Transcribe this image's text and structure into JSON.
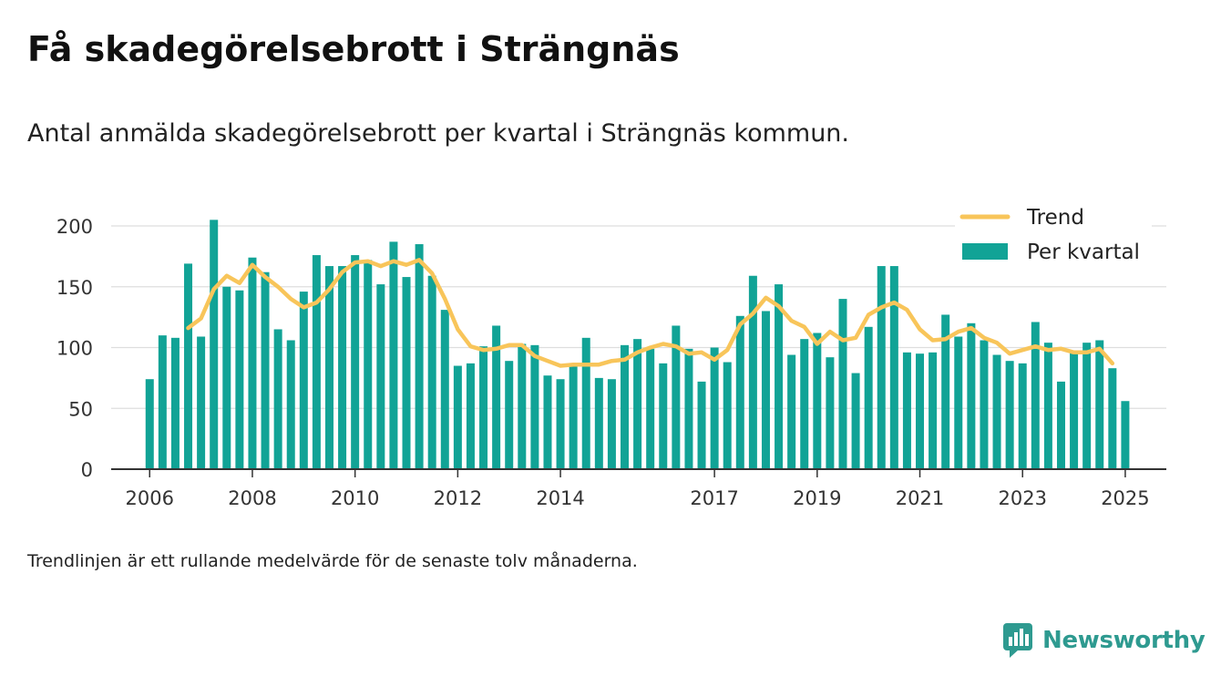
{
  "title": "Få skadegörelsebrott i Strängnäs",
  "subtitle": "Antal anmälda skadegörelsebrott per kvartal i Strängnäs kommun.",
  "footnote": "Trendlinjen är ett rullande medelvärde för de senaste tolv månaderna.",
  "brand": {
    "name": "Newsworthy",
    "icon": "newsworthy-logo-icon",
    "color": "#2e9a90"
  },
  "colors": {
    "bar": "#11a396",
    "trend": "#f8c55a",
    "grid": "#dedede",
    "axis": "#333333"
  },
  "chart_data": {
    "type": "bar",
    "title": "Få skadegörelsebrott i Strängnäs",
    "xlabel": "",
    "ylabel": "",
    "ylim": [
      0,
      200
    ],
    "yticks": [
      0,
      50,
      100,
      150,
      200
    ],
    "xlim": [
      2005.25,
      2025.8
    ],
    "xticks": [
      2006,
      2008,
      2010,
      2012,
      2014,
      2017,
      2019,
      2021,
      2023,
      2025
    ],
    "grid": true,
    "legend": "top-right",
    "x_start": 2006,
    "x_step": 0.25,
    "series": [
      {
        "name": "Per kvartal",
        "kind": "bar",
        "values": [
          74,
          110,
          108,
          169,
          109,
          205,
          150,
          147,
          174,
          162,
          115,
          106,
          146,
          176,
          167,
          167,
          176,
          172,
          152,
          187,
          158,
          185,
          159,
          131,
          85,
          87,
          101,
          118,
          89,
          103,
          102,
          77,
          74,
          86,
          108,
          75,
          74,
          102,
          107,
          99,
          87,
          118,
          99,
          72,
          100,
          88,
          126,
          159,
          130,
          152,
          94,
          107,
          112,
          92,
          140,
          79,
          117,
          167,
          167,
          96,
          95,
          96,
          127,
          109,
          120,
          106,
          94,
          89,
          87,
          121,
          104,
          72,
          97,
          104,
          106,
          83,
          56
        ]
      },
      {
        "name": "Trend",
        "kind": "line",
        "start_index": 3,
        "values": [
          116,
          124,
          148,
          159,
          153,
          168,
          158,
          150,
          140,
          133,
          137,
          148,
          162,
          170,
          171,
          167,
          171,
          168,
          172,
          161,
          140,
          115,
          101,
          98,
          99,
          102,
          102,
          93,
          89,
          85,
          86,
          86,
          86,
          89,
          90,
          96,
          100,
          103,
          101,
          95,
          96,
          90,
          98,
          119,
          128,
          141,
          134,
          122,
          117,
          103,
          113,
          106,
          108,
          127,
          133,
          137,
          131,
          115,
          106,
          107,
          113,
          116,
          108,
          104,
          95,
          98,
          101,
          98,
          99,
          96,
          96,
          99,
          87
        ]
      }
    ]
  }
}
